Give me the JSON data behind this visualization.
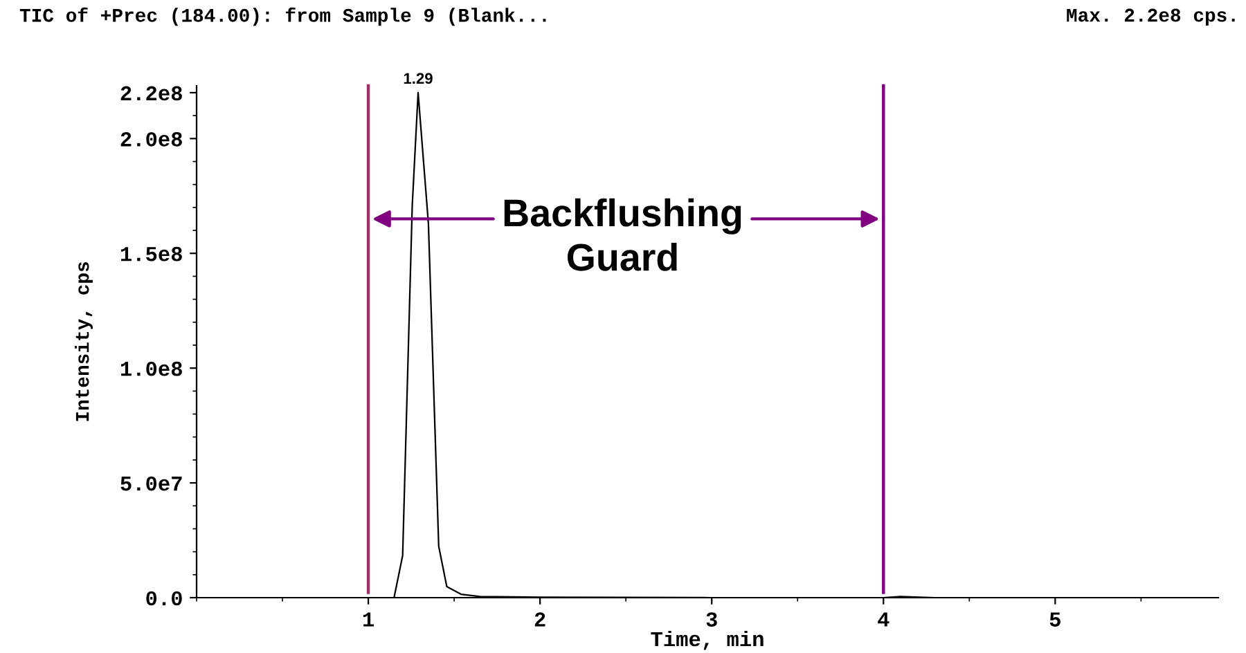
{
  "chart_data": {
    "type": "line",
    "title": "TIC of +Prec (184.00): from Sample 9 (Blank...",
    "subtitle": "Max. 2.2e8 cps.",
    "xlabel": "Time, min",
    "ylabel": "Intensity, cps",
    "series": [
      {
        "color": "#000000",
        "x": [
          0.0,
          1.15,
          1.2,
          1.256,
          1.29,
          1.35,
          1.41,
          1.457,
          1.54,
          1.65,
          2.0,
          3.0,
          4.0,
          4.1,
          4.3,
          5.0,
          5.95
        ],
        "values": [
          0,
          0,
          18400000,
          171000000,
          220000000,
          163000000,
          22400000,
          4800000,
          1500000,
          500000,
          200000,
          0,
          0,
          500000,
          0,
          0,
          0
        ]
      }
    ],
    "xlim": [
      0,
      5.95
    ],
    "xticks": [
      1,
      2,
      3,
      4,
      5
    ],
    "ylim": [
      0,
      223000000
    ],
    "yticks": [
      {
        "value": 0,
        "label": "0.0"
      },
      {
        "value": 50000000,
        "label": "5.0e7"
      },
      {
        "value": 100000000,
        "label": "1.0e8"
      },
      {
        "value": 150000000,
        "label": "1.5e8"
      },
      {
        "value": 200000000,
        "label": "2.0e8"
      },
      {
        "value": 220000000,
        "label": "2.2e8"
      }
    ],
    "ref_lines": [
      {
        "axis": "x",
        "value": 1,
        "color": "#a0306a"
      },
      {
        "axis": "x",
        "value": 4,
        "color": "#800080"
      }
    ],
    "annotations": [
      {
        "text": "1.29",
        "x": 1.29,
        "y": 220000000
      },
      "Backflushing\nGuard"
    ],
    "grid": false,
    "marker": "none",
    "line_style": "solid"
  }
}
